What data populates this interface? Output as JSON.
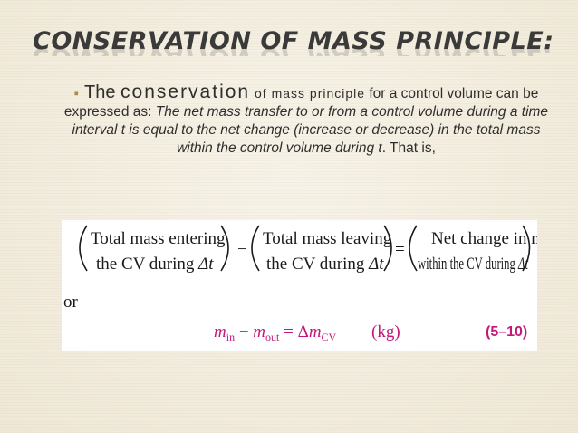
{
  "slide": {
    "title": "CONSERVATION OF MASS PRINCIPLE:",
    "bullet_icon": "bullet-square-icon",
    "para": {
      "p1": "The ",
      "p2": "conservation",
      "p3": " of mass principle",
      "p4": " for a control volume can be expressed as: ",
      "p5": "The net mass transfer to or from a control volume during a time interval t is equal to the net change (increase or decrease) in the total mass within the control volume during ",
      "p6": "t",
      "p7": ". That is,"
    }
  },
  "equation": {
    "box1_line1": "Total mass entering",
    "box1_line2a": "the CV during ",
    "box1_line2b": "Δt",
    "minus": "−",
    "box2_line1": "Total mass leaving",
    "box2_line2a": "the CV during ",
    "box2_line2b": "Δt",
    "equals": "=",
    "box3_line1": "Net change in mass",
    "box3_line2a": "within the CV during ",
    "box3_line2b": "Δt",
    "or": "or",
    "m": "m",
    "in_sub": "in",
    "minus2": " − ",
    "out_sub": "out",
    "equals2": " = Δ",
    "cv_sub": "CV",
    "unit": "(kg)",
    "number": "(5–10)",
    "accent_color": "#c2187a"
  }
}
